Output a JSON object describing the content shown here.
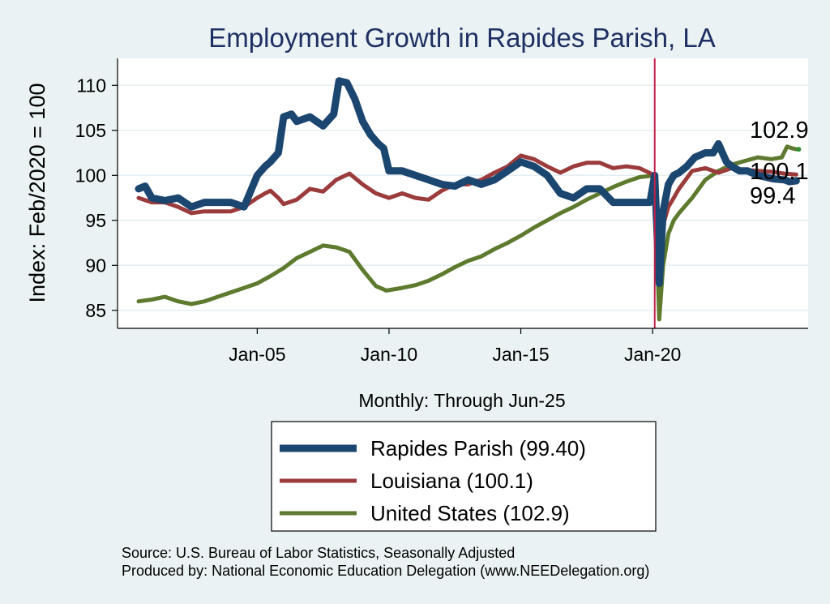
{
  "chart_data": {
    "type": "line",
    "title": "Employment Growth in Rapides Parish, LA",
    "ylabel": "Index: Feb/2020 = 100",
    "xlabel": "Monthly: Through Jun-25",
    "ylim": [
      83,
      113
    ],
    "xlim": [
      1999.7,
      2025.9
    ],
    "yticks": [
      85,
      90,
      95,
      100,
      105,
      110
    ],
    "ytick_labels": [
      "85",
      "90",
      "95",
      "100",
      "105",
      "110"
    ],
    "xticks": [
      2005,
      2010,
      2015,
      2020
    ],
    "xtick_labels": [
      "Jan-05",
      "Jan-10",
      "Jan-15",
      "Jan-20"
    ],
    "grid": "horizontal",
    "reference_line": {
      "x": 2020.08,
      "color": "#c0204a"
    },
    "colors": {
      "background": "#eaf2f3",
      "plot_background": "#ffffff",
      "grid": "#e4eef0",
      "title": "#1e2f63"
    },
    "series": [
      {
        "name": "Rapides Parish",
        "color": "#1b4670",
        "x": [
          2000.5,
          2000.75,
          2001.0,
          2001.5,
          2002.0,
          2002.5,
          2003.0,
          2003.5,
          2004.0,
          2004.5,
          2005.0,
          2005.3,
          2005.5,
          2005.8,
          2006.0,
          2006.3,
          2006.5,
          2007.0,
          2007.5,
          2007.9,
          2008.1,
          2008.4,
          2008.7,
          2009.0,
          2009.3,
          2009.6,
          2009.8,
          2010.0,
          2010.5,
          2011.0,
          2011.5,
          2012.0,
          2012.5,
          2013.0,
          2013.5,
          2014.0,
          2014.5,
          2015.0,
          2015.5,
          2016.0,
          2016.5,
          2017.0,
          2017.5,
          2018.0,
          2018.5,
          2019.0,
          2019.5,
          2019.9,
          2020.08,
          2020.25,
          2020.4,
          2020.6,
          2020.8,
          2021.0,
          2021.3,
          2021.6,
          2022.0,
          2022.3,
          2022.5,
          2022.8,
          2023.0,
          2023.3,
          2023.6,
          2024.0,
          2024.3,
          2024.6,
          2025.0,
          2025.2,
          2025.45
        ],
        "y": [
          98.5,
          98.8,
          97.5,
          97.2,
          97.5,
          96.5,
          97.0,
          97.0,
          97.0,
          96.5,
          100.0,
          101.0,
          101.5,
          102.5,
          106.5,
          106.8,
          106.0,
          106.5,
          105.5,
          106.8,
          110.5,
          110.3,
          108.5,
          106.0,
          104.5,
          103.5,
          103.0,
          100.5,
          100.5,
          100.0,
          99.5,
          99.0,
          98.8,
          99.5,
          99.0,
          99.5,
          100.5,
          101.5,
          101.0,
          100.0,
          98.0,
          97.5,
          98.5,
          98.5,
          97.0,
          97.0,
          97.0,
          97.0,
          100.0,
          88.0,
          96.0,
          99.0,
          100.0,
          100.3,
          101.0,
          102.0,
          102.5,
          102.5,
          103.5,
          101.5,
          101.0,
          100.5,
          100.5,
          100.0,
          99.8,
          99.6,
          99.5,
          99.3,
          99.4
        ],
        "end_value": "99.4",
        "legend_label": "Rapides Parish  (99.40)"
      },
      {
        "name": "Louisiana",
        "color": "#9b3b3b",
        "x": [
          2000.5,
          2001.0,
          2001.5,
          2002.0,
          2002.5,
          2003.0,
          2003.5,
          2004.0,
          2004.5,
          2005.0,
          2005.3,
          2005.5,
          2005.8,
          2006.0,
          2006.5,
          2007.0,
          2007.5,
          2008.0,
          2008.5,
          2009.0,
          2009.5,
          2010.0,
          2010.5,
          2011.0,
          2011.5,
          2012.0,
          2012.5,
          2013.0,
          2013.5,
          2014.0,
          2014.5,
          2015.0,
          2015.5,
          2016.0,
          2016.5,
          2017.0,
          2017.5,
          2018.0,
          2018.5,
          2019.0,
          2019.5,
          2020.08,
          2020.25,
          2020.4,
          2020.6,
          2020.8,
          2021.0,
          2021.5,
          2022.0,
          2022.5,
          2023.0,
          2023.5,
          2024.0,
          2024.5,
          2025.0,
          2025.45
        ],
        "y": [
          97.5,
          97.0,
          97.0,
          96.5,
          95.8,
          96.0,
          96.0,
          96.0,
          96.5,
          97.5,
          98.0,
          98.3,
          97.5,
          96.8,
          97.3,
          98.5,
          98.2,
          99.5,
          100.2,
          99.0,
          98.0,
          97.5,
          98.0,
          97.5,
          97.3,
          98.3,
          99.0,
          99.0,
          99.5,
          100.3,
          101.0,
          102.2,
          101.8,
          101.0,
          100.3,
          101.0,
          101.4,
          101.4,
          100.8,
          101.0,
          100.8,
          100.0,
          90.0,
          94.5,
          96.5,
          97.5,
          98.5,
          100.5,
          100.8,
          100.3,
          100.8,
          100.6,
          100.5,
          100.4,
          100.2,
          100.1
        ],
        "end_value": "100.1",
        "legend_label": "Louisiana (100.1)"
      },
      {
        "name": "United States",
        "color": "#5d7a2e",
        "x": [
          2000.5,
          2001.0,
          2001.5,
          2002.0,
          2002.5,
          2003.0,
          2003.5,
          2004.0,
          2004.5,
          2005.0,
          2005.5,
          2006.0,
          2006.5,
          2007.0,
          2007.5,
          2008.0,
          2008.5,
          2009.0,
          2009.5,
          2009.9,
          2010.5,
          2011.0,
          2011.5,
          2012.0,
          2012.5,
          2013.0,
          2013.5,
          2014.0,
          2014.5,
          2015.0,
          2015.5,
          2016.0,
          2016.5,
          2017.0,
          2017.5,
          2018.0,
          2018.5,
          2019.0,
          2019.5,
          2020.08,
          2020.25,
          2020.4,
          2020.6,
          2020.8,
          2021.0,
          2021.5,
          2022.0,
          2022.5,
          2023.0,
          2023.5,
          2024.0,
          2024.5,
          2024.9,
          2025.1,
          2025.3,
          2025.45
        ],
        "y": [
          86.0,
          86.2,
          86.5,
          86.0,
          85.7,
          86.0,
          86.5,
          87.0,
          87.5,
          88.0,
          88.8,
          89.7,
          90.8,
          91.5,
          92.2,
          92.0,
          91.5,
          89.5,
          87.7,
          87.2,
          87.5,
          87.8,
          88.3,
          89.0,
          89.8,
          90.5,
          91.0,
          91.8,
          92.5,
          93.3,
          94.2,
          95.0,
          95.8,
          96.5,
          97.3,
          98.0,
          98.7,
          99.3,
          99.8,
          100.0,
          84.0,
          90.0,
          93.5,
          95.0,
          95.8,
          97.5,
          99.5,
          100.5,
          101.2,
          101.6,
          102.0,
          101.8,
          102.0,
          103.2,
          103.0,
          102.9
        ],
        "end_value": "102.9",
        "legend_label": "United States (102.9)"
      }
    ],
    "legend_position": "bottom"
  },
  "source": {
    "line1": "Source: U.S. Bureau of Labor Statistics, Seasonally Adjusted",
    "line2": "Produced by: National Economic Education Delegation (www.NEEDelegation.org)"
  }
}
